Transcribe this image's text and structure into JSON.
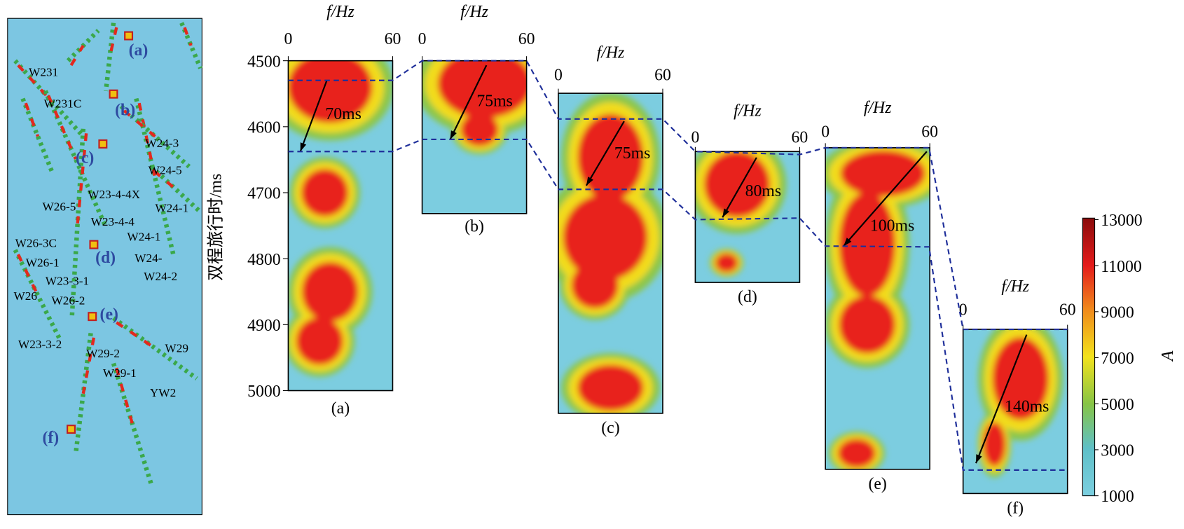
{
  "chart_data": {
    "type": "spectral-panels",
    "y_label": "双程旅行时/ms",
    "ylim": [
      4500,
      5000
    ],
    "yticks": [
      4500,
      4600,
      4700,
      4800,
      4900,
      5000
    ],
    "panels": [
      {
        "x_label": "f/Hz",
        "xlim": [
          0,
          60
        ],
        "xticks": [
          0,
          60
        ],
        "label": "(a)",
        "annotation": "70ms"
      },
      {
        "x_label": "f/Hz",
        "xlim": [
          0,
          60
        ],
        "xticks": [
          0,
          60
        ],
        "label": "(b)",
        "annotation": "75ms"
      },
      {
        "x_label": "f/Hz",
        "xlim": [
          0,
          60
        ],
        "xticks": [
          0,
          60
        ],
        "label": "(c)",
        "annotation": "75ms"
      },
      {
        "x_label": "f/Hz",
        "xlim": [
          0,
          60
        ],
        "xticks": [
          0,
          60
        ],
        "label": "(d)",
        "annotation": "80ms"
      },
      {
        "x_label": "f/Hz",
        "xlim": [
          0,
          60
        ],
        "xticks": [
          0,
          60
        ],
        "label": "(e)",
        "annotation": "100ms"
      },
      {
        "x_label": "f/Hz",
        "xlim": [
          0,
          60
        ],
        "xticks": [
          0,
          60
        ],
        "label": "(f)",
        "annotation": "140ms"
      }
    ],
    "colorbar": {
      "label": "A",
      "lim": [
        1000,
        13000
      ],
      "ticks": [
        1000,
        3000,
        5000,
        7000,
        9000,
        11000,
        13000
      ]
    },
    "map": {
      "wells": [
        "W231",
        "W231C",
        "W24-3",
        "W24-5",
        "W23-4-4X",
        "W26-5",
        "W24-1",
        "W23-4-4",
        "W24-1",
        "W26-3C",
        "W24-",
        "W26-1",
        "W24-2",
        "W23-3-1",
        "W26",
        "W26-2",
        "W23-3-2",
        "W29-2",
        "W29",
        "W29-1",
        "YW2"
      ],
      "sites": [
        "(a)",
        "(b)",
        "(c)",
        "(d)",
        "(e)",
        "(f)"
      ]
    }
  }
}
